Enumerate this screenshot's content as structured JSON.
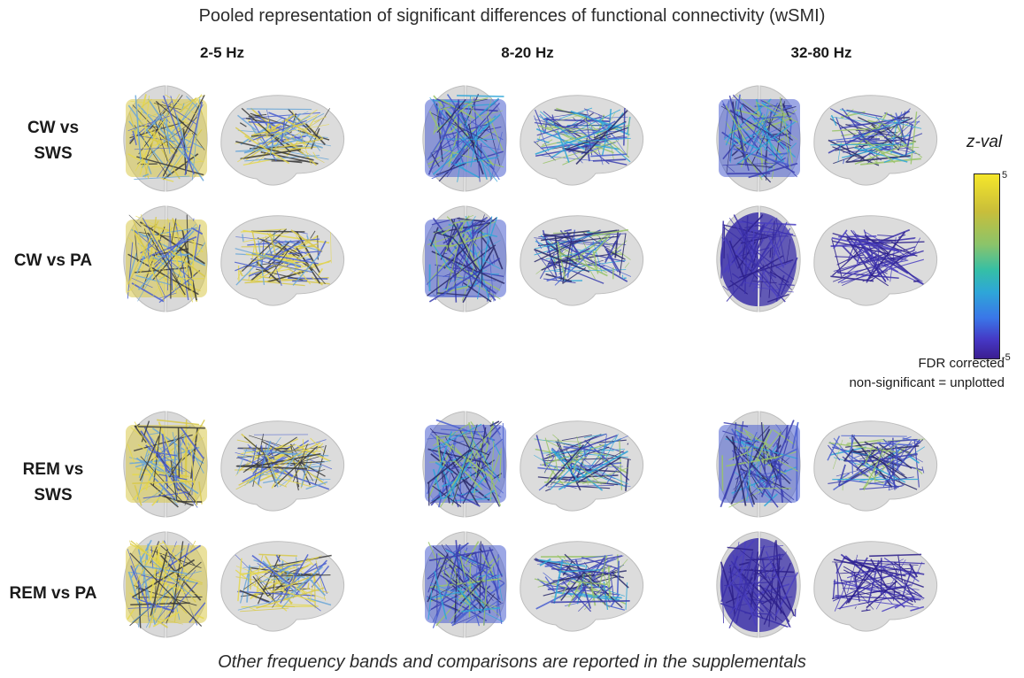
{
  "title": "Pooled representation of significant differences of functional connectivity (wSMI)",
  "columns": [
    "2-5 Hz",
    "8-20 Hz",
    "32-80 Hz"
  ],
  "rows": [
    {
      "label_lines": [
        "CW vs",
        "SWS"
      ]
    },
    {
      "label_lines": [
        "CW vs PA"
      ]
    },
    {
      "label_lines": [
        "REM vs",
        "SWS"
      ]
    },
    {
      "label_lines": [
        "REM vs PA"
      ]
    }
  ],
  "colorbar": {
    "title": "z-val",
    "max_label": "5",
    "min_label": "-5",
    "colors": [
      "#f5e62a",
      "#8bc46a",
      "#2ea6d8",
      "#4537c4",
      "#3b1e90"
    ]
  },
  "notes": {
    "line1": "FDR corrected",
    "line2": "non-significant = unplotted"
  },
  "footer": "Other frequency bands and comparisons are reported in the supplementals",
  "panel_colors": {
    "yellow": "#d8c94a",
    "blue": "#4a5fd0",
    "deep_blue": "#3a2fa8"
  }
}
